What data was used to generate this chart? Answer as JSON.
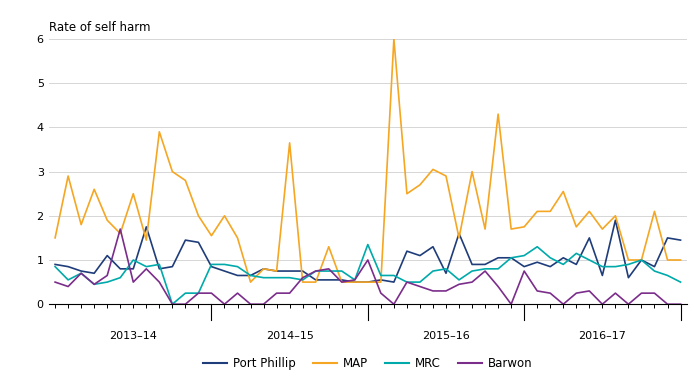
{
  "title": "Rate of self harm",
  "ylim": [
    0,
    6
  ],
  "yticks": [
    0,
    1,
    2,
    3,
    4,
    5,
    6
  ],
  "colors": {
    "Port Phillip": "#1f3d7a",
    "MAP": "#f5a623",
    "MRC": "#00aaaa",
    "Barwon": "#7b2d8b"
  },
  "year_labels": [
    "2013–14",
    "2014–15",
    "2015–16",
    "2016–17"
  ],
  "series": {
    "Port Phillip": [
      0.9,
      0.85,
      0.75,
      0.7,
      1.1,
      0.8,
      0.8,
      1.75,
      0.8,
      0.85,
      1.45,
      1.4,
      0.85,
      0.75,
      0.65,
      0.65,
      0.8,
      0.75,
      0.75,
      0.75,
      0.55,
      0.55,
      0.55,
      0.5,
      0.5,
      0.55,
      0.5,
      1.2,
      1.1,
      1.3,
      0.7,
      1.6,
      0.9,
      0.9,
      1.05,
      1.05,
      0.85,
      0.95,
      0.85,
      1.05,
      0.9,
      1.5,
      0.65,
      1.9,
      0.6,
      1.0,
      0.85,
      1.5,
      1.45
    ],
    "MAP": [
      1.5,
      2.9,
      1.8,
      2.6,
      1.9,
      1.6,
      2.5,
      1.45,
      3.9,
      3.0,
      2.8,
      2.0,
      1.55,
      2.0,
      1.5,
      0.5,
      0.8,
      0.75,
      3.65,
      0.5,
      0.5,
      1.3,
      0.5,
      0.5,
      0.5,
      0.5,
      6.0,
      2.5,
      2.7,
      3.05,
      2.9,
      1.5,
      3.0,
      1.7,
      4.3,
      1.7,
      1.75,
      2.1,
      2.1,
      2.55,
      1.75,
      2.1,
      1.7,
      2.0,
      1.0,
      1.0,
      2.1,
      1.0,
      1.0
    ],
    "MRC": [
      0.85,
      0.55,
      0.7,
      0.45,
      0.5,
      0.6,
      1.0,
      0.85,
      0.9,
      0.0,
      0.25,
      0.25,
      0.9,
      0.9,
      0.85,
      0.65,
      0.6,
      0.6,
      0.6,
      0.55,
      0.75,
      0.75,
      0.75,
      0.55,
      1.35,
      0.65,
      0.65,
      0.5,
      0.5,
      0.75,
      0.8,
      0.55,
      0.75,
      0.8,
      0.8,
      1.05,
      1.1,
      1.3,
      1.05,
      0.9,
      1.15,
      1.0,
      0.85,
      0.85,
      0.9,
      1.0,
      0.75,
      0.65,
      0.5
    ],
    "Barwon": [
      0.5,
      0.4,
      0.7,
      0.45,
      0.65,
      1.7,
      0.5,
      0.8,
      0.5,
      0.0,
      0.0,
      0.25,
      0.25,
      0.0,
      0.25,
      0.0,
      0.0,
      0.25,
      0.25,
      0.6,
      0.75,
      0.8,
      0.5,
      0.55,
      1.0,
      0.25,
      0.0,
      0.5,
      0.4,
      0.3,
      0.3,
      0.45,
      0.5,
      0.75,
      0.4,
      0.0,
      0.75,
      0.3,
      0.25,
      0.0,
      0.25,
      0.3,
      0.0,
      0.25,
      0.0,
      0.25,
      0.25,
      0.0,
      0.0
    ]
  },
  "year_boundaries": [
    12,
    24,
    36,
    48
  ],
  "n_points": 49,
  "background_color": "#ffffff",
  "grid_color": "#d0d0d0",
  "legend_order": [
    "Port Phillip",
    "MAP",
    "MRC",
    "Barwon"
  ]
}
